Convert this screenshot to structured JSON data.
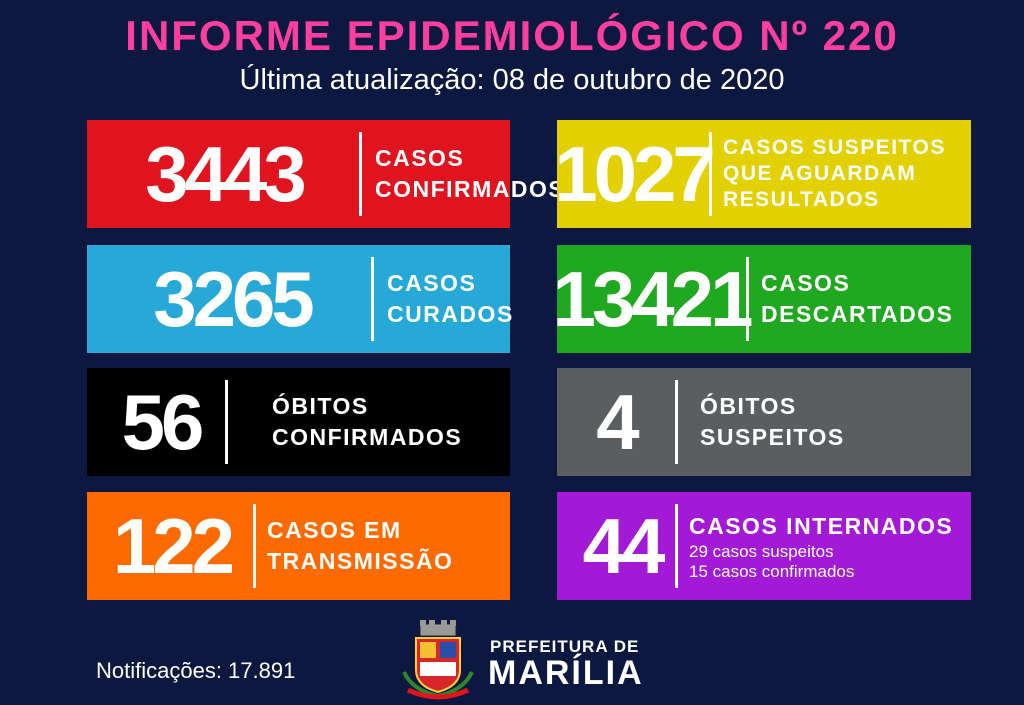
{
  "header": {
    "title": "INFORME EPIDEMIOLÓGICO Nº 220",
    "updated": "Última atualização: 08 de outubro de 2020"
  },
  "cards": {
    "confirmados": {
      "value": "3443",
      "line1": "CASOS",
      "line2": "CONFIRMADOS",
      "color": "#e0141e"
    },
    "suspeitos": {
      "value": "1027",
      "line1": "CASOS SUSPEITOS",
      "line2": "QUE AGUARDAM",
      "line3": "RESULTADOS",
      "color": "#e3d000"
    },
    "curados": {
      "value": "3265",
      "line1": "CASOS",
      "line2": "CURADOS",
      "color": "#27a9d8"
    },
    "descartados": {
      "value": "13421",
      "line1": "CASOS",
      "line2": "DESCARTADOS",
      "color": "#20a820"
    },
    "obitos_confirmados": {
      "value": "56",
      "line1": "ÓBITOS",
      "line2": "CONFIRMADOS",
      "color": "#000000"
    },
    "obitos_suspeitos": {
      "value": "4",
      "line1": "ÓBITOS",
      "line2": "SUSPEITOS",
      "color": "#5a5e60"
    },
    "transmissao": {
      "value": "122",
      "line1": "CASOS EM",
      "line2": "TRANSMISSÃO",
      "color": "#ff6a00"
    },
    "internados": {
      "value": "44",
      "line1": "CASOS INTERNADOS",
      "line2": "29 casos suspeitos",
      "line3": "15 casos confirmados",
      "color": "#a31ad6"
    }
  },
  "footer": {
    "notificacoes": "Notificações: 17.891",
    "prefeitura_line1": "PREFEITURA DE",
    "prefeitura_line2": "MARÍLIA"
  }
}
